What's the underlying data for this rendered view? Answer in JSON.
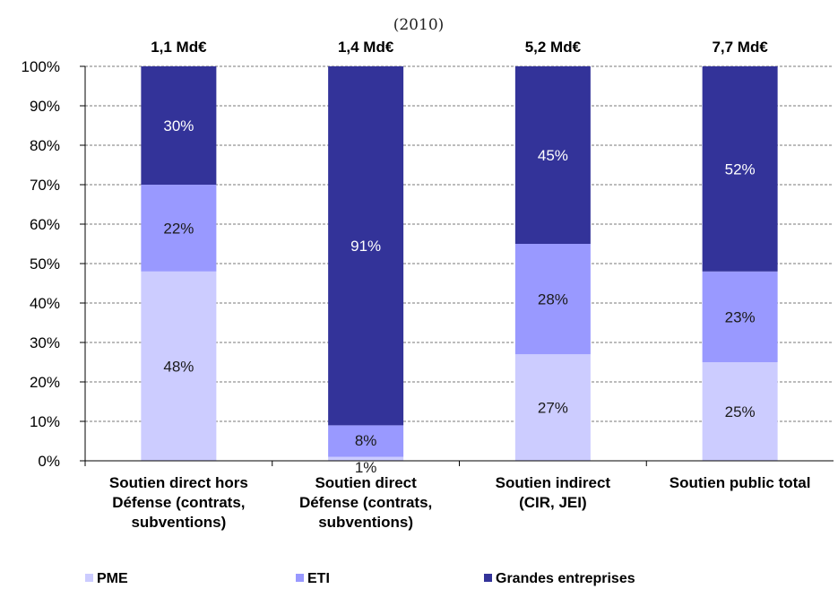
{
  "chart_data": {
    "type": "bar",
    "stacked": true,
    "subtitle": "(2010)",
    "categories": [
      [
        "Soutien direct hors",
        "Défense (contrats,",
        "subventions)"
      ],
      [
        "Soutien direct",
        "Défense (contrats,",
        "subventions)"
      ],
      [
        "Soutien indirect",
        "(CIR, JEI)"
      ],
      [
        "Soutien public total"
      ]
    ],
    "totals": [
      "1,1 Md€",
      "1,4 Md€",
      "5,2 Md€",
      "7,7 Md€"
    ],
    "series": [
      {
        "name": "PME",
        "values": [
          48,
          1,
          27,
          25
        ],
        "labels": [
          "48%",
          "1%",
          "27%",
          "25%"
        ],
        "color": "#ccccff"
      },
      {
        "name": "ETI",
        "values": [
          22,
          8,
          28,
          23
        ],
        "labels": [
          "22%",
          "8%",
          "28%",
          "23%"
        ],
        "color": "#9999ff"
      },
      {
        "name": "Grandes entreprises",
        "values": [
          30,
          91,
          45,
          52
        ],
        "labels": [
          "30%",
          "91%",
          "45%",
          "52%"
        ],
        "color": "#333399"
      }
    ],
    "ylim": [
      0,
      100
    ],
    "yticks": [
      "0%",
      "10%",
      "20%",
      "30%",
      "40%",
      "50%",
      "60%",
      "70%",
      "80%",
      "90%",
      "100%"
    ],
    "grid": true,
    "legend_position": "bottom"
  }
}
